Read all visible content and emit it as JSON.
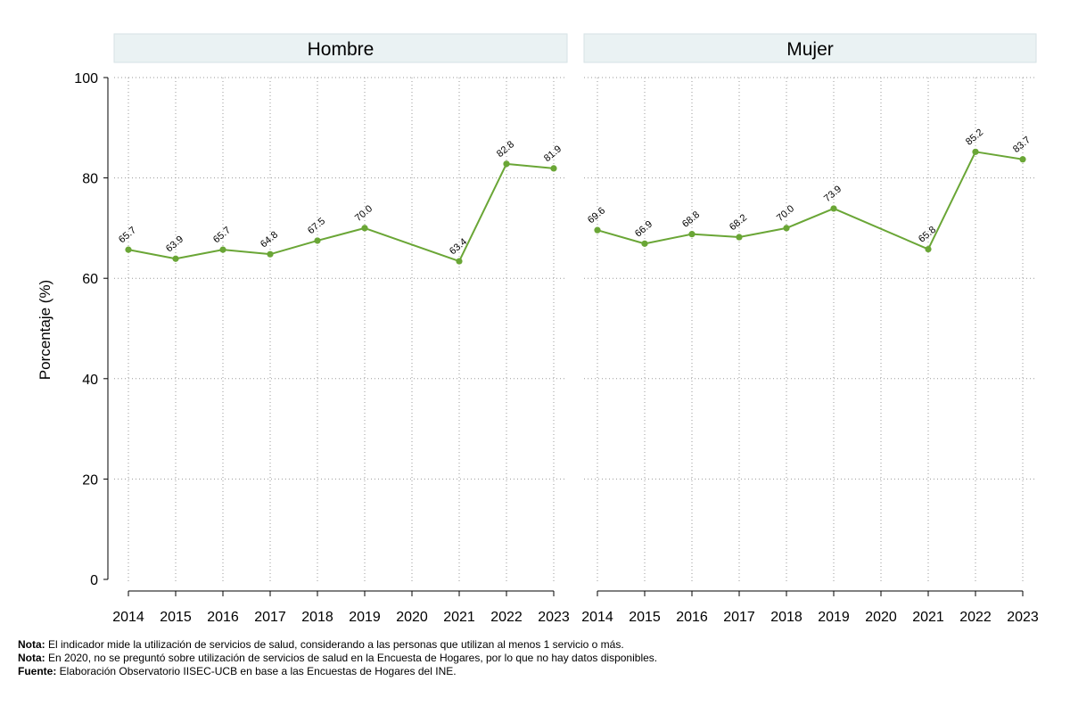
{
  "chart_data": {
    "type": "line",
    "ylabel": "Porcentaje (%)",
    "ylim": [
      0,
      100
    ],
    "yticks": [
      0,
      20,
      40,
      60,
      80,
      100
    ],
    "categories": [
      "2014",
      "2015",
      "2016",
      "2017",
      "2018",
      "2019",
      "2020",
      "2021",
      "2022",
      "2023"
    ],
    "grid": true,
    "line_color": "#6aa636",
    "panels": [
      {
        "title": "Hombre",
        "values": [
          65.7,
          63.9,
          65.7,
          64.8,
          67.5,
          70.0,
          null,
          63.4,
          82.8,
          81.9
        ],
        "labels": [
          "65.7",
          "63.9",
          "65.7",
          "64.8",
          "67.5",
          "70.0",
          "",
          "63.4",
          "82.8",
          "81.9"
        ]
      },
      {
        "title": "Mujer",
        "values": [
          69.6,
          66.9,
          68.8,
          68.2,
          70.0,
          73.9,
          null,
          65.8,
          85.2,
          83.7
        ],
        "labels": [
          "69.6",
          "66.9",
          "68.8",
          "68.2",
          "70.0",
          "73.9",
          "",
          "65.8",
          "85.2",
          "83.7"
        ]
      }
    ]
  },
  "notes": [
    {
      "label": "Nota:",
      "text": " El indicador mide la utilización de servicios de salud, considerando a las personas que utilizan al menos 1 servicio o más."
    },
    {
      "label": "Nota:",
      "text": " En 2020, no se preguntó sobre utilización de servicios de salud en la Encuesta de Hogares, por lo que no hay datos disponibles."
    },
    {
      "label": "Fuente:",
      "text": " Elaboración Observatorio IISEC-UCB en base a las Encuestas de Hogares del INE."
    }
  ]
}
